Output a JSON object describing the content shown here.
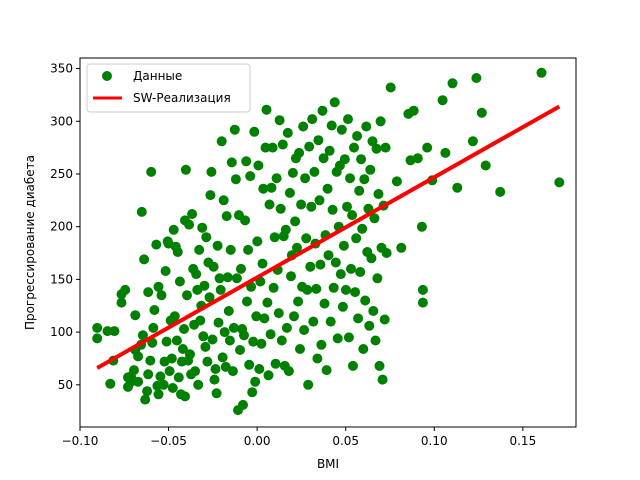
{
  "colors": {
    "points": "#008000",
    "regression_line": "#ff0000",
    "axes": "#000000",
    "legend_border": "#cccccc"
  },
  "chart_data": {
    "type": "scatter",
    "xlabel": "BMI",
    "ylabel": "Прогрессирование диабета",
    "xlim": [
      -0.1,
      0.18
    ],
    "ylim": [
      10,
      360
    ],
    "x_ticks": [
      -0.1,
      -0.05,
      0.0,
      0.05,
      0.1,
      0.15
    ],
    "x_tick_labels": [
      "−0.10",
      "−0.05",
      "0.00",
      "0.05",
      "0.10",
      "0.15"
    ],
    "y_ticks": [
      50,
      100,
      150,
      200,
      250,
      300,
      350
    ],
    "y_tick_labels": [
      "50",
      "100",
      "150",
      "200",
      "250",
      "300",
      "350"
    ],
    "grid": false,
    "legend_position": "upper-left",
    "legend": [
      {
        "label": "Данные",
        "marker": "circle",
        "color": "#008000"
      },
      {
        "label": "SW-Реализация",
        "marker": "line",
        "color": "#ff0000"
      }
    ],
    "regression_line": {
      "name": "SW-Реализация",
      "x": [
        -0.0903,
        0.1706
      ],
      "y": [
        66,
        314
      ]
    },
    "series": [
      {
        "name": "Данные",
        "points": [
          [
            -0.0903,
            104
          ],
          [
            -0.0903,
            94
          ],
          [
            -0.0845,
            101
          ],
          [
            -0.0806,
            101
          ],
          [
            -0.0812,
            73
          ],
          [
            -0.0829,
            51
          ],
          [
            -0.0766,
            128
          ],
          [
            -0.0766,
            136
          ],
          [
            -0.0745,
            140
          ],
          [
            -0.0729,
            57
          ],
          [
            -0.0729,
            48
          ],
          [
            -0.0712,
            53
          ],
          [
            -0.0712,
            58
          ],
          [
            -0.0695,
            64
          ],
          [
            -0.0688,
            116
          ],
          [
            -0.0688,
            83
          ],
          [
            -0.0672,
            53
          ],
          [
            -0.0672,
            77
          ],
          [
            -0.0655,
            88
          ],
          [
            -0.0651,
            214
          ],
          [
            -0.0645,
            97
          ],
          [
            -0.0638,
            169
          ],
          [
            -0.0632,
            36
          ],
          [
            -0.0621,
            44
          ],
          [
            -0.0615,
            60
          ],
          [
            -0.0615,
            138
          ],
          [
            -0.0603,
            73
          ],
          [
            -0.0598,
            252
          ],
          [
            -0.0592,
            90
          ],
          [
            -0.0586,
            104
          ],
          [
            -0.058,
            121
          ],
          [
            -0.0569,
            183
          ],
          [
            -0.0563,
            49
          ],
          [
            -0.0557,
            41
          ],
          [
            -0.0557,
            143
          ],
          [
            -0.0546,
            58
          ],
          [
            -0.054,
            135
          ],
          [
            -0.0528,
            50
          ],
          [
            -0.0523,
            72
          ],
          [
            -0.0517,
            158
          ],
          [
            -0.0511,
            91
          ],
          [
            -0.0505,
            186
          ],
          [
            -0.05,
            184
          ],
          [
            -0.0494,
            63
          ],
          [
            -0.0488,
            111
          ],
          [
            -0.0482,
            75
          ],
          [
            -0.0476,
            47
          ],
          [
            -0.0471,
            197
          ],
          [
            -0.0465,
            115
          ],
          [
            -0.0459,
            181
          ],
          [
            -0.0453,
            92
          ],
          [
            -0.0448,
            176
          ],
          [
            -0.0442,
            57
          ],
          [
            -0.0436,
            148
          ],
          [
            -0.043,
            41
          ],
          [
            -0.0425,
            72
          ],
          [
            -0.0419,
            84
          ],
          [
            -0.0413,
            103
          ],
          [
            -0.0407,
            206
          ],
          [
            -0.0407,
            39
          ],
          [
            -0.0402,
            254
          ],
          [
            -0.0396,
            135
          ],
          [
            -0.039,
            73
          ],
          [
            -0.0384,
            202
          ],
          [
            -0.0379,
            79
          ],
          [
            -0.0373,
            60
          ],
          [
            -0.0367,
            212
          ],
          [
            -0.0361,
            160
          ],
          [
            -0.0356,
            107
          ],
          [
            -0.035,
            63
          ],
          [
            -0.0344,
            155
          ],
          [
            -0.0338,
            140
          ],
          [
            -0.0333,
            50
          ],
          [
            -0.0327,
            178
          ],
          [
            -0.0321,
            111
          ],
          [
            -0.0315,
            125
          ],
          [
            -0.031,
            199
          ],
          [
            -0.0304,
            96
          ],
          [
            -0.0298,
            144
          ],
          [
            -0.0292,
            86
          ],
          [
            -0.0287,
            190
          ],
          [
            -0.0281,
            72
          ],
          [
            -0.0275,
            166
          ],
          [
            -0.0269,
            133
          ],
          [
            -0.0264,
            230
          ],
          [
            -0.0258,
            252
          ],
          [
            -0.0252,
            93
          ],
          [
            -0.0246,
            162
          ],
          [
            -0.0241,
            55
          ],
          [
            -0.0235,
            65
          ],
          [
            -0.0229,
            42
          ],
          [
            -0.0223,
            182
          ],
          [
            -0.0218,
            109
          ],
          [
            -0.0212,
            151
          ],
          [
            -0.0206,
            140
          ],
          [
            -0.02,
            281
          ],
          [
            -0.0195,
            76
          ],
          [
            -0.0189,
            225
          ],
          [
            -0.0183,
            100
          ],
          [
            -0.0177,
            67
          ],
          [
            -0.0172,
            210
          ],
          [
            -0.0166,
            152
          ],
          [
            -0.016,
            120
          ],
          [
            -0.0154,
            92
          ],
          [
            -0.0149,
            178
          ],
          [
            -0.0143,
            261
          ],
          [
            -0.0137,
            63
          ],
          [
            -0.0131,
            104
          ],
          [
            -0.0126,
            292
          ],
          [
            -0.012,
            245
          ],
          [
            -0.0114,
            151
          ],
          [
            -0.0108,
            26
          ],
          [
            -0.0103,
            211
          ],
          [
            -0.0097,
            83
          ],
          [
            -0.0091,
            160
          ],
          [
            -0.0085,
            103
          ],
          [
            -0.008,
            31
          ],
          [
            -0.0074,
            97
          ],
          [
            -0.0068,
            206
          ],
          [
            -0.0062,
            262
          ],
          [
            -0.0057,
            129
          ],
          [
            -0.0051,
            178
          ],
          [
            -0.0045,
            69
          ],
          [
            -0.0039,
            248
          ],
          [
            -0.0034,
            143
          ],
          [
            -0.0028,
            43
          ],
          [
            -0.0022,
            91
          ],
          [
            -0.0016,
            290
          ],
          [
            -0.0011,
            53
          ],
          [
            -0.0005,
            115
          ],
          [
            0.0001,
            186
          ],
          [
            0.0007,
            258
          ],
          [
            0.0012,
            65
          ],
          [
            0.0018,
            148
          ],
          [
            0.0024,
            89
          ],
          [
            0.003,
            165
          ],
          [
            0.0035,
            236
          ],
          [
            0.0041,
            113
          ],
          [
            0.0047,
            275
          ],
          [
            0.0053,
            311
          ],
          [
            0.0058,
            128
          ],
          [
            0.0064,
            59
          ],
          [
            0.007,
            221
          ],
          [
            0.0076,
            98
          ],
          [
            0.0081,
            237
          ],
          [
            0.0087,
            275
          ],
          [
            0.0093,
            142
          ],
          [
            0.0099,
            190
          ],
          [
            0.0104,
            70
          ],
          [
            0.011,
            246
          ],
          [
            0.0116,
            159
          ],
          [
            0.0122,
            118
          ],
          [
            0.0127,
            301
          ],
          [
            0.0133,
            217
          ],
          [
            0.0139,
            92
          ],
          [
            0.0145,
            278
          ],
          [
            0.015,
            191
          ],
          [
            0.0156,
            68
          ],
          [
            0.0162,
            197
          ],
          [
            0.0168,
            104
          ],
          [
            0.0173,
            289
          ],
          [
            0.0179,
            63
          ],
          [
            0.0185,
            232
          ],
          [
            0.0191,
            153
          ],
          [
            0.0196,
            173
          ],
          [
            0.0202,
            251
          ],
          [
            0.0208,
            115
          ],
          [
            0.0214,
            205
          ],
          [
            0.0219,
            265
          ],
          [
            0.0225,
            180
          ],
          [
            0.0231,
            129
          ],
          [
            0.0237,
            270
          ],
          [
            0.0242,
            84
          ],
          [
            0.0248,
            221
          ],
          [
            0.0254,
            143
          ],
          [
            0.026,
            295
          ],
          [
            0.0265,
            102
          ],
          [
            0.0271,
            246
          ],
          [
            0.0277,
            189
          ],
          [
            0.0283,
            140
          ],
          [
            0.0288,
            50
          ],
          [
            0.0294,
            276
          ],
          [
            0.03,
            162
          ],
          [
            0.0306,
            219
          ],
          [
            0.0311,
            302
          ],
          [
            0.0317,
            110
          ],
          [
            0.0323,
            252
          ],
          [
            0.0329,
            184
          ],
          [
            0.0334,
            141
          ],
          [
            0.034,
            75
          ],
          [
            0.0346,
            282
          ],
          [
            0.0352,
            225
          ],
          [
            0.0357,
            164
          ],
          [
            0.0363,
            88
          ],
          [
            0.0369,
            310
          ],
          [
            0.0375,
            265
          ],
          [
            0.038,
            127
          ],
          [
            0.0386,
            192
          ],
          [
            0.0392,
            64
          ],
          [
            0.0398,
            236
          ],
          [
            0.0403,
            173
          ],
          [
            0.0409,
            272
          ],
          [
            0.0415,
            110
          ],
          [
            0.0421,
            296
          ],
          [
            0.0426,
            216
          ],
          [
            0.0432,
            142
          ],
          [
            0.0438,
            318
          ],
          [
            0.0444,
            166
          ],
          [
            0.0449,
            252
          ],
          [
            0.0455,
            94
          ],
          [
            0.0461,
            200
          ],
          [
            0.0467,
            258
          ],
          [
            0.0472,
            155
          ],
          [
            0.0478,
            292
          ],
          [
            0.0484,
            124
          ],
          [
            0.049,
            182
          ],
          [
            0.0495,
            264
          ],
          [
            0.0501,
            140
          ],
          [
            0.0507,
            219
          ],
          [
            0.0513,
            302
          ],
          [
            0.0518,
            95
          ],
          [
            0.0524,
            246
          ],
          [
            0.053,
            160
          ],
          [
            0.0536,
            211
          ],
          [
            0.0541,
            68
          ],
          [
            0.0547,
            275
          ],
          [
            0.0553,
            138
          ],
          [
            0.0559,
            189
          ],
          [
            0.0564,
            286
          ],
          [
            0.057,
            113
          ],
          [
            0.0576,
            234
          ],
          [
            0.0582,
            157
          ],
          [
            0.0587,
            264
          ],
          [
            0.0593,
            198
          ],
          [
            0.0599,
            84
          ],
          [
            0.0605,
            245
          ],
          [
            0.061,
            130
          ],
          [
            0.0616,
            295
          ],
          [
            0.0622,
            176
          ],
          [
            0.0628,
            217
          ],
          [
            0.0633,
            106
          ],
          [
            0.0639,
            254
          ],
          [
            0.0645,
            170
          ],
          [
            0.0651,
            281
          ],
          [
            0.0656,
            120
          ],
          [
            0.0662,
            208
          ],
          [
            0.0668,
            92
          ],
          [
            0.0674,
            274
          ],
          [
            0.0679,
            151
          ],
          [
            0.0685,
            231
          ],
          [
            0.0691,
            68
          ],
          [
            0.0697,
            300
          ],
          [
            0.0702,
            180
          ],
          [
            0.0708,
            55
          ],
          [
            0.0714,
            220
          ],
          [
            0.072,
            112
          ],
          [
            0.0725,
            275
          ],
          [
            0.0731,
            175
          ],
          [
            0.0754,
            332
          ],
          [
            0.0789,
            243
          ],
          [
            0.0814,
            180
          ],
          [
            0.0854,
            307
          ],
          [
            0.0866,
            263
          ],
          [
            0.0884,
            310
          ],
          [
            0.0907,
            265
          ],
          [
            0.093,
            200
          ],
          [
            0.0936,
            128
          ],
          [
            0.0936,
            140
          ],
          [
            0.096,
            275
          ],
          [
            0.0988,
            244
          ],
          [
            0.1047,
            320
          ],
          [
            0.1063,
            270
          ],
          [
            0.1103,
            336
          ],
          [
            0.113,
            237
          ],
          [
            0.1218,
            281
          ],
          [
            0.1238,
            341
          ],
          [
            0.1268,
            308
          ],
          [
            0.129,
            258
          ],
          [
            0.1372,
            233
          ],
          [
            0.1605,
            346
          ],
          [
            0.1706,
            242
          ]
        ]
      }
    ]
  }
}
